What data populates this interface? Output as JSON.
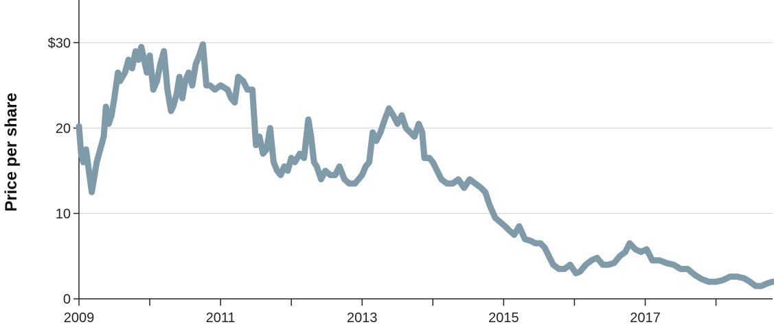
{
  "chart_data": {
    "type": "line",
    "title": "",
    "xlabel": "",
    "ylabel": "Price per share",
    "ylim": [
      0,
      35
    ],
    "xlim": [
      2009.0,
      2018.8
    ],
    "y_ticks": [
      {
        "value": 0,
        "label": "0"
      },
      {
        "value": 10,
        "label": "10"
      },
      {
        "value": 20,
        "label": "20"
      },
      {
        "value": 30,
        "label": "$30"
      }
    ],
    "x_ticks_labeled": [
      {
        "value": 2009,
        "label": "2009"
      },
      {
        "value": 2011,
        "label": "2011"
      },
      {
        "value": 2013,
        "label": "2013"
      },
      {
        "value": 2015,
        "label": "2015"
      },
      {
        "value": 2017,
        "label": "2017"
      }
    ],
    "x_ticks_minor": [
      2010,
      2012,
      2014,
      2016,
      2018
    ],
    "grid": "horizontal",
    "line_color": "#7f9aa8",
    "series": [
      {
        "x": [
          2009.0,
          2009.03,
          2009.06,
          2009.1,
          2009.14,
          2009.18,
          2009.25,
          2009.35,
          2009.38,
          2009.42,
          2009.46,
          2009.5,
          2009.55,
          2009.58,
          2009.65,
          2009.7,
          2009.75,
          2009.8,
          2009.84,
          2009.88,
          2009.92,
          2009.96,
          2010.0,
          2010.05,
          2010.1,
          2010.15,
          2010.2,
          2010.25,
          2010.3,
          2010.33,
          2010.38,
          2010.42,
          2010.46,
          2010.5,
          2010.55,
          2010.6,
          2010.65,
          2010.7,
          2010.75,
          2010.8,
          2010.85,
          2010.92,
          2011.0,
          2011.1,
          2011.15,
          2011.2,
          2011.25,
          2011.32,
          2011.38,
          2011.45,
          2011.5,
          2011.55,
          2011.6,
          2011.65,
          2011.7,
          2011.75,
          2011.8,
          2011.85,
          2011.9,
          2011.95,
          2012.0,
          2012.05,
          2012.12,
          2012.18,
          2012.24,
          2012.28,
          2012.32,
          2012.36,
          2012.42,
          2012.48,
          2012.55,
          2012.62,
          2012.68,
          2012.75,
          2012.82,
          2012.9,
          2013.0,
          2013.05,
          2013.1,
          2013.15,
          2013.2,
          2013.26,
          2013.32,
          2013.38,
          2013.44,
          2013.5,
          2013.56,
          2013.62,
          2013.68,
          2013.74,
          2013.8,
          2013.85,
          2013.88,
          2013.95,
          2014.0,
          2014.06,
          2014.12,
          2014.2,
          2014.28,
          2014.36,
          2014.44,
          2014.52,
          2014.6,
          2014.68,
          2014.74,
          2014.8,
          2014.88,
          2014.95,
          2015.02,
          2015.08,
          2015.15,
          2015.22,
          2015.3,
          2015.38,
          2015.45,
          2015.52,
          2015.58,
          2015.64,
          2015.7,
          2015.78,
          2015.86,
          2015.94,
          2016.02,
          2016.08,
          2016.16,
          2016.24,
          2016.32,
          2016.4,
          2016.48,
          2016.56,
          2016.64,
          2016.72,
          2016.78,
          2016.86,
          2016.94,
          2017.02,
          2017.1,
          2017.2,
          2017.3,
          2017.4,
          2017.5,
          2017.6,
          2017.7,
          2017.8,
          2017.9,
          2018.0,
          2018.1,
          2018.2,
          2018.3,
          2018.4,
          2018.48,
          2018.56,
          2018.64,
          2018.72,
          2018.8
        ],
        "y": [
          20.2,
          17.0,
          16.0,
          17.5,
          15.0,
          12.5,
          16.0,
          19.0,
          22.5,
          20.5,
          21.5,
          23.5,
          26.5,
          25.5,
          26.5,
          28.0,
          27.0,
          29.0,
          28.0,
          29.5,
          28.0,
          26.5,
          28.5,
          24.5,
          25.5,
          27.5,
          29.0,
          24.5,
          22.0,
          22.5,
          24.0,
          26.0,
          23.5,
          25.5,
          26.5,
          25.0,
          27.5,
          28.5,
          29.8,
          25.0,
          25.0,
          24.5,
          25.0,
          24.5,
          23.5,
          23.0,
          26.0,
          25.5,
          24.5,
          24.5,
          18.0,
          19.0,
          17.0,
          17.5,
          20.0,
          16.0,
          15.0,
          14.5,
          15.5,
          15.0,
          16.5,
          16.0,
          17.0,
          16.5,
          21.0,
          19.0,
          16.0,
          15.5,
          14.0,
          15.0,
          14.5,
          14.5,
          15.5,
          14.0,
          13.5,
          13.5,
          14.5,
          15.5,
          16.0,
          19.5,
          18.5,
          19.5,
          21.0,
          22.3,
          21.5,
          20.5,
          21.5,
          20.0,
          19.5,
          19.0,
          20.5,
          19.5,
          16.5,
          16.5,
          16.0,
          15.0,
          14.0,
          13.5,
          13.5,
          14.0,
          13.0,
          14.0,
          13.5,
          13.0,
          12.5,
          11.0,
          9.5,
          9.0,
          8.5,
          8.0,
          7.5,
          8.5,
          7.0,
          6.8,
          6.5,
          6.5,
          6.0,
          5.0,
          4.0,
          3.5,
          3.5,
          4.0,
          3.0,
          3.2,
          4.0,
          4.5,
          4.8,
          4.0,
          4.0,
          4.2,
          5.0,
          5.5,
          6.5,
          5.8,
          5.5,
          5.8,
          4.5,
          4.5,
          4.2,
          4.0,
          3.5,
          3.5,
          2.8,
          2.3,
          2.0,
          2.0,
          2.2,
          2.6,
          2.6,
          2.4,
          2.0,
          1.5,
          1.5,
          1.8,
          2.0
        ]
      }
    ]
  }
}
